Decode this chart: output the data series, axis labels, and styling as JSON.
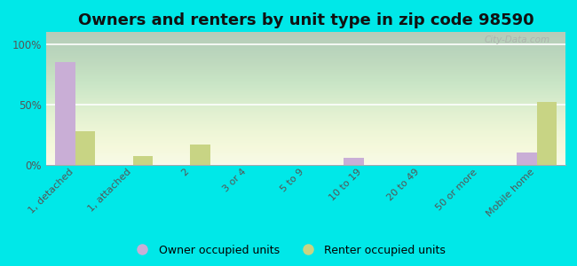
{
  "title": "Owners and renters by unit type in zip code 98590",
  "categories": [
    "1, detached",
    "1, attached",
    "2",
    "3 or 4",
    "5 to 9",
    "10 to 19",
    "20 to 49",
    "50 or more",
    "Mobile home"
  ],
  "owner_values": [
    85,
    0,
    0,
    0,
    0,
    6,
    0,
    0,
    10
  ],
  "renter_values": [
    28,
    7,
    17,
    0,
    0,
    0,
    0,
    0,
    52
  ],
  "owner_color": "#c9aed6",
  "renter_color": "#c8d484",
  "background_color": "#00e8e8",
  "ylabel_ticks": [
    "0%",
    "50%",
    "100%"
  ],
  "yticks": [
    0,
    50,
    100
  ],
  "ylim": [
    0,
    110
  ],
  "bar_width": 0.35,
  "title_fontsize": 13,
  "legend_owner": "Owner occupied units",
  "legend_renter": "Renter occupied units",
  "watermark": "City-Data.com"
}
